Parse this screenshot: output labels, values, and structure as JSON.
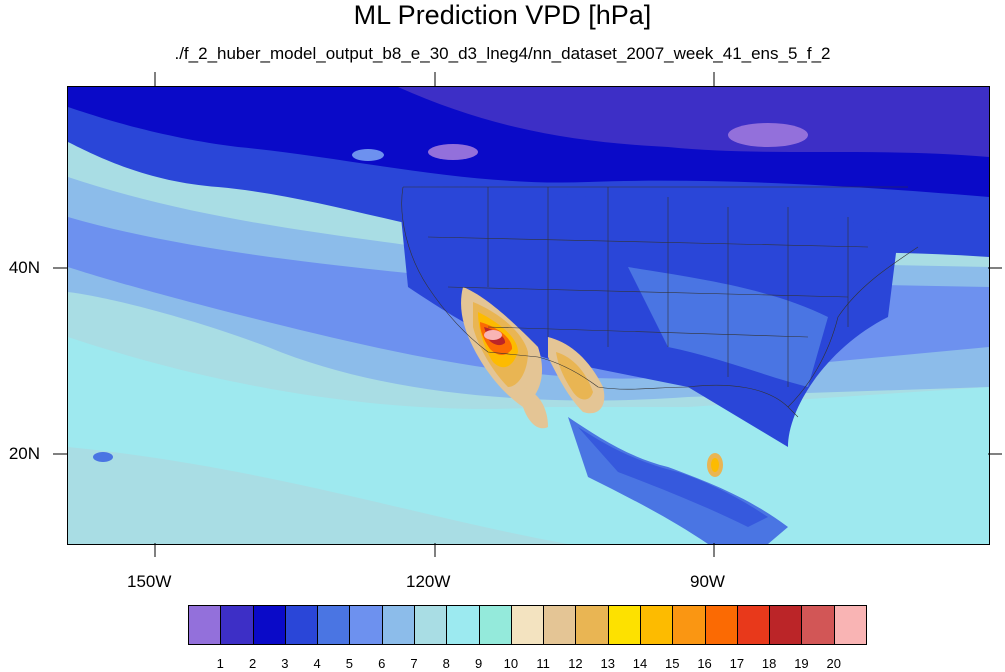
{
  "title": "ML Prediction VPD [hPa]",
  "subtitle": "./f_2_huber_model_output_b8_e_30_d3_lneg4/nn_dataset_2007_week_41_ens_5_f_2",
  "axes": {
    "lat_labels": [
      "40N",
      "20N"
    ],
    "lon_labels": [
      "150W",
      "120W",
      "90W"
    ]
  },
  "colorbar": {
    "colors": [
      "#9370db",
      "#3d2fc6",
      "#0a0ac8",
      "#2a46d8",
      "#4a75e3",
      "#6d91ef",
      "#8cbcea",
      "#a9dde4",
      "#9ceaf0",
      "#94eadb",
      "#f3e3c0",
      "#e4c595",
      "#e9b553",
      "#fde100",
      "#fdbb00",
      "#fa9612",
      "#fb6a03",
      "#e8391b",
      "#bb2528",
      "#d25656",
      "#f9b4b4"
    ],
    "labels": [
      "1",
      "2",
      "3",
      "4",
      "5",
      "6",
      "7",
      "8",
      "9",
      "10",
      "11",
      "12",
      "13",
      "14",
      "15",
      "16",
      "17",
      "18",
      "19",
      "20"
    ]
  }
}
